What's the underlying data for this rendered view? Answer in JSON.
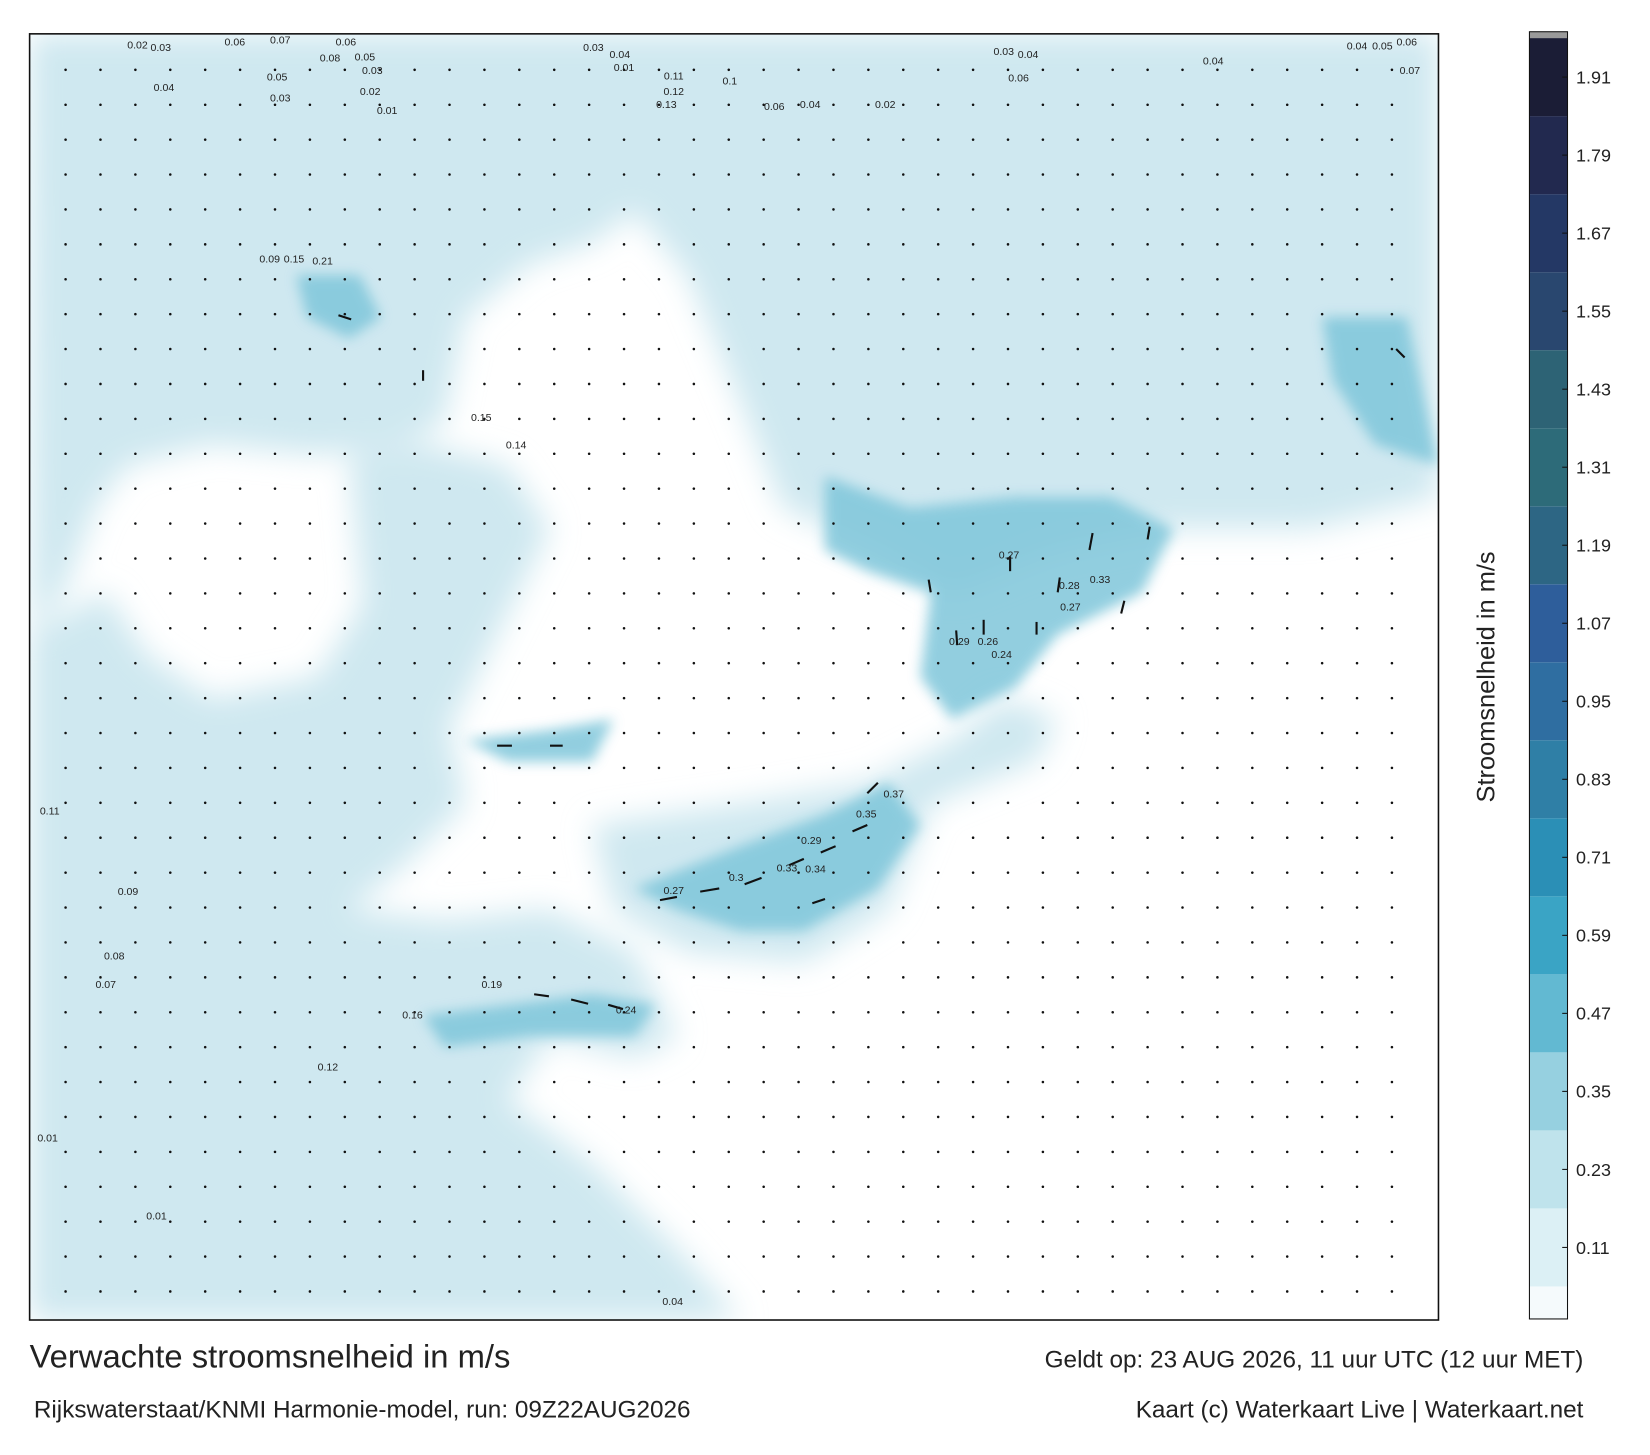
{
  "map": {
    "labels": [
      0.02,
      0.03,
      0.06,
      0.07,
      0.06,
      0.08,
      0.05,
      0.03,
      0.04,
      0.05,
      0.03,
      0.02,
      0.01,
      0.03,
      0.04,
      0.01,
      0.11,
      0.1,
      0.12,
      0.13,
      0.06,
      0.04,
      0.02,
      0.03,
      0.04,
      0.06,
      0.04,
      0.04,
      0.05,
      0.06,
      0.07,
      0.27,
      0.33,
      0.28,
      0.27,
      0.29,
      0.26,
      0.24,
      0.37,
      0.35,
      0.29,
      0.33,
      0.34,
      0.3,
      0.27,
      0.24,
      0.19,
      0.16,
      0.12,
      0.01,
      0.04,
      0.01,
      0.11,
      0.09,
      0.08,
      0.07,
      0.14,
      0.15,
      0.21,
      0.15,
      0.09
    ],
    "colorbar": {
      "label": "Stroomsnelheid in m/s",
      "lim": [
        0,
        1.97
      ],
      "ticks": [
        0.11,
        0.23,
        0.35,
        0.47,
        0.59,
        0.71,
        0.83,
        0.95,
        1.07,
        1.19,
        1.31,
        1.43,
        1.55,
        1.67,
        1.79,
        1.91
      ],
      "colors": [
        "#f5fafc",
        "#dcf0f5",
        "#bfe3ec",
        "#96d0e0",
        "#62b9d2",
        "#3aa4c5",
        "#2b8fb6",
        "#2f7fa6",
        "#2f6ea1",
        "#2e5e9b",
        "#2d6684",
        "#2d6b79",
        "#2d6375",
        "#29476f",
        "#243865",
        "#22294f",
        "#1b1d36"
      ]
    }
  },
  "footer": {
    "title": "Verwachte stroomsnelheid in m/s",
    "model": "Rijkswaterstaat/KNMI Harmonie-model, run: 09Z22AUG2026",
    "valid": "Geldt op: 23 AUG 2026, 11 uur UTC (12 uur MET)",
    "credit": "Kaart (c) Waterkaart Live | Waterkaart.net"
  }
}
